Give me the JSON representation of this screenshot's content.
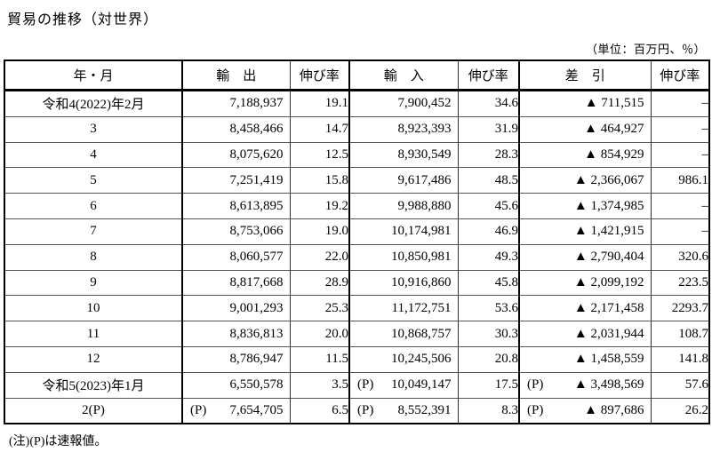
{
  "title": "貿易の推移（対世界）",
  "unit_note": "（単位：百万円、％）",
  "footnote": "(注)(P)は速報値。",
  "table": {
    "headers": [
      "年・月",
      "輸　出",
      "伸び率",
      "輸　入",
      "伸び率",
      "差　引",
      "伸び率"
    ],
    "rows": [
      {
        "month": "令和4(2022)年2月",
        "export_p": "",
        "export": "7,188,937",
        "export_growth": "19.1",
        "import_p": "",
        "import": "7,900,452",
        "import_growth": "34.6",
        "balance_p": "",
        "balance": "▲ 711,515",
        "balance_growth": "–"
      },
      {
        "month": "3",
        "export_p": "",
        "export": "8,458,466",
        "export_growth": "14.7",
        "import_p": "",
        "import": "8,923,393",
        "import_growth": "31.9",
        "balance_p": "",
        "balance": "▲ 464,927",
        "balance_growth": "–"
      },
      {
        "month": "4",
        "export_p": "",
        "export": "8,075,620",
        "export_growth": "12.5",
        "import_p": "",
        "import": "8,930,549",
        "import_growth": "28.3",
        "balance_p": "",
        "balance": "▲ 854,929",
        "balance_growth": "–"
      },
      {
        "month": "5",
        "export_p": "",
        "export": "7,251,419",
        "export_growth": "15.8",
        "import_p": "",
        "import": "9,617,486",
        "import_growth": "48.5",
        "balance_p": "",
        "balance": "▲ 2,366,067",
        "balance_growth": "986.1"
      },
      {
        "month": "6",
        "export_p": "",
        "export": "8,613,895",
        "export_growth": "19.2",
        "import_p": "",
        "import": "9,988,880",
        "import_growth": "45.6",
        "balance_p": "",
        "balance": "▲ 1,374,985",
        "balance_growth": "–"
      },
      {
        "month": "7",
        "export_p": "",
        "export": "8,753,066",
        "export_growth": "19.0",
        "import_p": "",
        "import": "10,174,981",
        "import_growth": "46.9",
        "balance_p": "",
        "balance": "▲ 1,421,915",
        "balance_growth": "–"
      },
      {
        "month": "8",
        "export_p": "",
        "export": "8,060,577",
        "export_growth": "22.0",
        "import_p": "",
        "import": "10,850,981",
        "import_growth": "49.3",
        "balance_p": "",
        "balance": "▲ 2,790,404",
        "balance_growth": "320.6"
      },
      {
        "month": "9",
        "export_p": "",
        "export": "8,817,668",
        "export_growth": "28.9",
        "import_p": "",
        "import": "10,916,860",
        "import_growth": "45.8",
        "balance_p": "",
        "balance": "▲ 2,099,192",
        "balance_growth": "223.5"
      },
      {
        "month": "10",
        "export_p": "",
        "export": "9,001,293",
        "export_growth": "25.3",
        "import_p": "",
        "import": "11,172,751",
        "import_growth": "53.6",
        "balance_p": "",
        "balance": "▲ 2,171,458",
        "balance_growth": "2293.7"
      },
      {
        "month": "11",
        "export_p": "",
        "export": "8,836,813",
        "export_growth": "20.0",
        "import_p": "",
        "import": "10,868,757",
        "import_growth": "30.3",
        "balance_p": "",
        "balance": "▲ 2,031,944",
        "balance_growth": "108.7"
      },
      {
        "month": "12",
        "export_p": "",
        "export": "8,786,947",
        "export_growth": "11.5",
        "import_p": "",
        "import": "10,245,506",
        "import_growth": "20.8",
        "balance_p": "",
        "balance": "▲ 1,458,559",
        "balance_growth": "141.8"
      },
      {
        "month": "令和5(2023)年1月",
        "export_p": "",
        "export": "6,550,578",
        "export_growth": "3.5",
        "import_p": "(P)",
        "import": "10,049,147",
        "import_growth": "17.5",
        "balance_p": "(P)",
        "balance": "▲ 3,498,569",
        "balance_growth": "57.6"
      },
      {
        "month": "2(P)",
        "export_p": "(P)",
        "export": "7,654,705",
        "export_growth": "6.5",
        "import_p": "(P)",
        "import": "8,552,391",
        "import_growth": "8.3",
        "balance_p": "(P)",
        "balance": "▲ 897,686",
        "balance_growth": "26.2"
      }
    ]
  }
}
